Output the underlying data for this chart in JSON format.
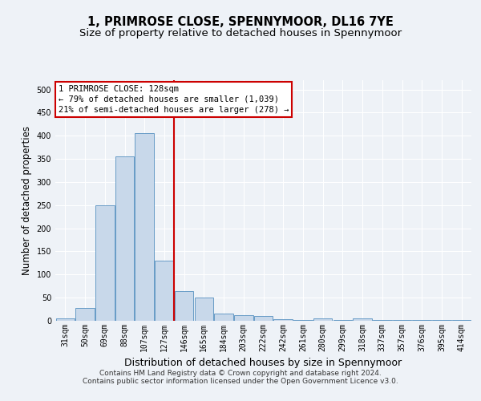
{
  "title": "1, PRIMROSE CLOSE, SPENNYMOOR, DL16 7YE",
  "subtitle": "Size of property relative to detached houses in Spennymoor",
  "xlabel": "Distribution of detached houses by size in Spennymoor",
  "ylabel": "Number of detached properties",
  "footer_line1": "Contains HM Land Registry data © Crown copyright and database right 2024.",
  "footer_line2": "Contains public sector information licensed under the Open Government Licence v3.0.",
  "bin_labels": [
    "31sqm",
    "50sqm",
    "69sqm",
    "88sqm",
    "107sqm",
    "127sqm",
    "146sqm",
    "165sqm",
    "184sqm",
    "203sqm",
    "222sqm",
    "242sqm",
    "261sqm",
    "280sqm",
    "299sqm",
    "318sqm",
    "337sqm",
    "357sqm",
    "376sqm",
    "395sqm",
    "414sqm"
  ],
  "bar_heights": [
    5,
    28,
    250,
    355,
    405,
    130,
    65,
    50,
    15,
    12,
    10,
    3,
    2,
    5,
    2,
    5,
    2,
    1,
    2,
    1,
    2
  ],
  "bar_color": "#c8d8ea",
  "bar_edge_color": "#5590c0",
  "vline_x_index": 5,
  "vline_color": "#cc0000",
  "annotation_text": "1 PRIMROSE CLOSE: 128sqm\n← 79% of detached houses are smaller (1,039)\n21% of semi-detached houses are larger (278) →",
  "annotation_box_color": "#cc0000",
  "ylim": [
    0,
    520
  ],
  "yticks": [
    0,
    50,
    100,
    150,
    200,
    250,
    300,
    350,
    400,
    450,
    500
  ],
  "background_color": "#eef2f7",
  "plot_background": "#eef2f7",
  "grid_color": "#ffffff",
  "title_fontsize": 10.5,
  "subtitle_fontsize": 9.5,
  "xlabel_fontsize": 9,
  "ylabel_fontsize": 8.5,
  "tick_fontsize": 7,
  "annotation_fontsize": 7.5,
  "footer_fontsize": 6.5
}
